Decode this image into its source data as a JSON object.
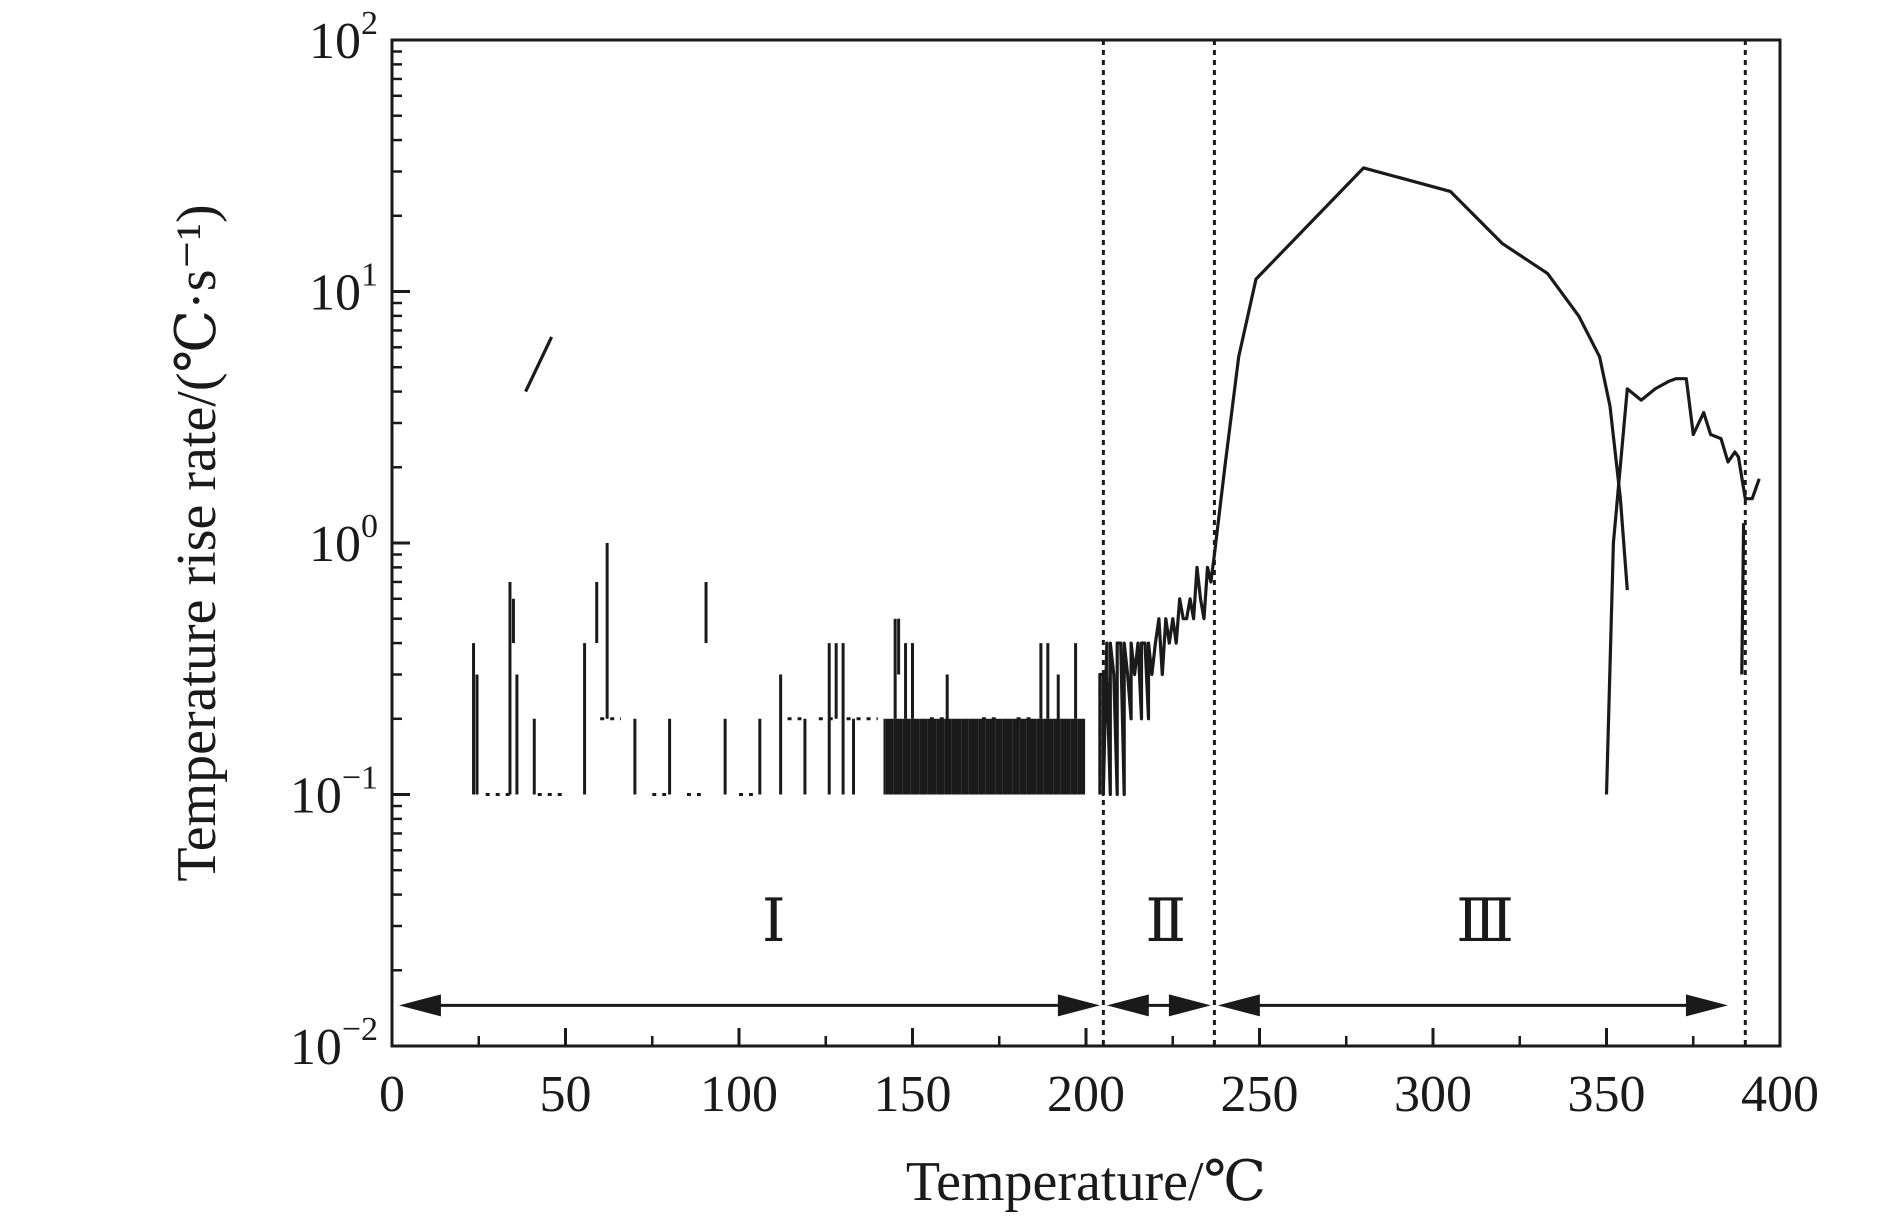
{
  "chart_data": {
    "type": "line",
    "title": "",
    "xlabel": "Temperature/℃",
    "ylabel": "Temperature rise rate/(℃·s⁻¹)",
    "x_scale": "linear",
    "y_scale": "log",
    "xlim": [
      0,
      400
    ],
    "ylim": [
      0.01,
      100
    ],
    "x_ticks": [
      0,
      50,
      100,
      150,
      200,
      250,
      300,
      350,
      400
    ],
    "x_tick_labels": [
      "0",
      "50",
      "100",
      "150",
      "200",
      "250",
      "300",
      "350",
      "400"
    ],
    "y_ticks": [
      0.01,
      0.1,
      1,
      10,
      100
    ],
    "y_tick_labels": [
      {
        "base": "10",
        "exp": "−2"
      },
      {
        "base": "10",
        "exp": "−1"
      },
      {
        "base": "10",
        "exp": "0"
      },
      {
        "base": "10",
        "exp": "1"
      },
      {
        "base": "10",
        "exp": "2"
      }
    ],
    "grid": false,
    "legend": "none",
    "line_color": "#1a1a1a",
    "boundaries": [
      205,
      237,
      390
    ],
    "regions": [
      {
        "label": "Ⅰ",
        "from": 2,
        "to": 204,
        "label_x": 110
      },
      {
        "label": "Ⅱ",
        "from": 206,
        "to": 236,
        "label_x": 223
      },
      {
        "label": "Ⅲ",
        "from": 238,
        "to": 385,
        "label_x": 315
      }
    ],
    "arrow_y": 0.0145,
    "label_y": 0.032,
    "series": [
      {
        "points": [
          [
            38.5,
            4.0
          ],
          [
            46,
            6.6
          ]
        ]
      },
      {
        "points": [
          [
            204,
            0.1
          ],
          [
            204,
            0.3
          ],
          [
            205,
            0.3
          ],
          [
            205,
            0.1
          ],
          [
            206,
            0.4
          ],
          [
            206,
            0.3
          ],
          [
            207,
            0.1
          ],
          [
            207,
            0.4
          ],
          [
            208,
            0.3
          ],
          [
            209,
            0.1
          ],
          [
            209,
            0.4
          ],
          [
            210,
            0.4
          ],
          [
            211,
            0.1
          ],
          [
            211,
            0.4
          ],
          [
            212,
            0.3
          ],
          [
            213,
            0.2
          ],
          [
            213,
            0.4
          ],
          [
            214,
            0.3
          ],
          [
            215,
            0.4
          ],
          [
            216,
            0.2
          ],
          [
            216,
            0.4
          ],
          [
            217,
            0.4
          ],
          [
            218,
            0.2
          ],
          [
            218,
            0.4
          ],
          [
            219,
            0.3
          ],
          [
            220,
            0.4
          ],
          [
            221,
            0.5
          ],
          [
            222,
            0.3
          ],
          [
            223,
            0.5
          ],
          [
            224,
            0.4
          ],
          [
            225,
            0.5
          ],
          [
            226,
            0.4
          ],
          [
            227,
            0.6
          ],
          [
            228,
            0.5
          ],
          [
            229,
            0.5
          ],
          [
            230,
            0.6
          ],
          [
            231,
            0.5
          ],
          [
            232,
            0.8
          ],
          [
            233,
            0.6
          ],
          [
            234,
            0.5
          ],
          [
            235,
            0.8
          ],
          [
            236,
            0.7
          ],
          [
            237,
            0.9
          ],
          [
            240,
            2.0
          ],
          [
            244,
            5.5
          ],
          [
            249,
            11.2
          ],
          [
            280,
            31.0
          ],
          [
            305,
            25.0
          ],
          [
            320,
            15.5
          ],
          [
            333,
            11.8
          ],
          [
            342,
            8.0
          ],
          [
            348,
            5.5
          ],
          [
            351,
            3.5
          ],
          [
            354,
            1.5
          ],
          [
            356,
            0.65
          ]
        ]
      },
      {
        "points": [
          [
            350,
            0.1
          ],
          [
            352,
            1.0
          ],
          [
            356,
            4.1
          ],
          [
            360,
            3.7
          ],
          [
            364,
            4.1
          ],
          [
            368,
            4.4
          ],
          [
            370,
            4.5
          ],
          [
            373,
            4.5
          ],
          [
            375,
            2.7
          ],
          [
            378,
            3.3
          ],
          [
            380,
            2.7
          ],
          [
            383,
            2.6
          ],
          [
            385,
            2.1
          ],
          [
            387,
            2.3
          ],
          [
            388,
            2.2
          ],
          [
            390,
            1.5
          ],
          [
            392,
            1.5
          ],
          [
            394,
            1.8
          ]
        ]
      },
      {
        "points": [
          [
            389,
            0.3
          ],
          [
            389.5,
            1.2
          ]
        ]
      }
    ],
    "spikes": [
      [
        23.5,
        0.1,
        0.4
      ],
      [
        24.5,
        0.1,
        0.3
      ],
      [
        34,
        0.1,
        0.7
      ],
      [
        35,
        0.4,
        0.6
      ],
      [
        36,
        0.1,
        0.3
      ],
      [
        41,
        0.1,
        0.2
      ],
      [
        55.5,
        0.1,
        0.4
      ],
      [
        59,
        0.4,
        0.7
      ],
      [
        62,
        0.2,
        1.0
      ],
      [
        70,
        0.1,
        0.2
      ],
      [
        80,
        0.1,
        0.2
      ],
      [
        90.5,
        0.4,
        0.7
      ],
      [
        96,
        0.1,
        0.2
      ],
      [
        106,
        0.1,
        0.2
      ],
      [
        112,
        0.1,
        0.3
      ],
      [
        119,
        0.1,
        0.2
      ],
      [
        126,
        0.1,
        0.4
      ],
      [
        128,
        0.2,
        0.4
      ],
      [
        130,
        0.1,
        0.4
      ],
      [
        133,
        0.1,
        0.2
      ],
      [
        145,
        0.2,
        0.5
      ],
      [
        146,
        0.3,
        0.5
      ],
      [
        148,
        0.2,
        0.4
      ],
      [
        150,
        0.2,
        0.4
      ],
      [
        160,
        0.1,
        0.3
      ],
      [
        187,
        0.2,
        0.4
      ],
      [
        189,
        0.2,
        0.4
      ],
      [
        192,
        0.1,
        0.3
      ],
      [
        197,
        0.2,
        0.4
      ]
    ],
    "dashes": [
      [
        27,
        34,
        0.1
      ],
      [
        42,
        49,
        0.1
      ],
      [
        60,
        66,
        0.2
      ],
      [
        75,
        79,
        0.1
      ],
      [
        85,
        89,
        0.1
      ],
      [
        100,
        104,
        0.1
      ],
      [
        114,
        118,
        0.2
      ],
      [
        123,
        127,
        0.2
      ],
      [
        131,
        140,
        0.2
      ],
      [
        155,
        159,
        0.2
      ],
      [
        170,
        174,
        0.2
      ],
      [
        180,
        184,
        0.2
      ]
    ],
    "band": {
      "from": 142,
      "to": 200,
      "low": 0.1,
      "high": 0.2,
      "step": 0.7
    }
  }
}
